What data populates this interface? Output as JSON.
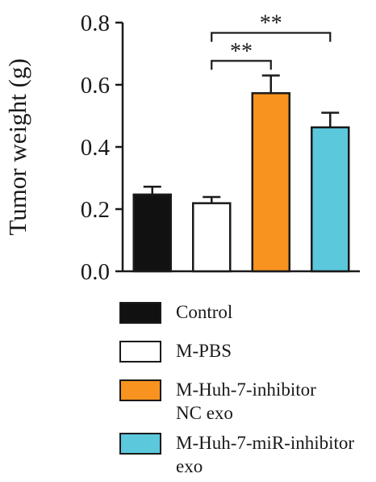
{
  "chart_data": {
    "type": "bar",
    "ylabel": "Tumor weight (g)",
    "ylim": [
      0,
      0.8
    ],
    "yticks": [
      "0.0",
      "0.2",
      "0.4",
      "0.6",
      "0.8"
    ],
    "categories": [
      "Control",
      "M-PBS",
      "M-Huh-7-inhibitor NC exo",
      "M-Huh-7-miR-inhibitor exo"
    ],
    "values": [
      0.247,
      0.219,
      0.573,
      0.463
    ],
    "errors": [
      0.025,
      0.02,
      0.057,
      0.047
    ],
    "colors": [
      "#111111",
      "#ffffff",
      "#f7931e",
      "#5bc8dc"
    ],
    "significance": [
      {
        "from": 1,
        "to": 2,
        "label": "**"
      },
      {
        "from": 1,
        "to": 3,
        "label": "**"
      }
    ],
    "legend": [
      {
        "label": "Control",
        "color": "#111111"
      },
      {
        "label": "M-PBS",
        "color": "#ffffff"
      },
      {
        "label": "M-Huh-7-inhibitor\nNC exo",
        "color": "#f7931e"
      },
      {
        "label": "M-Huh-7-miR-inhibitor\nexo",
        "color": "#5bc8dc"
      }
    ]
  }
}
